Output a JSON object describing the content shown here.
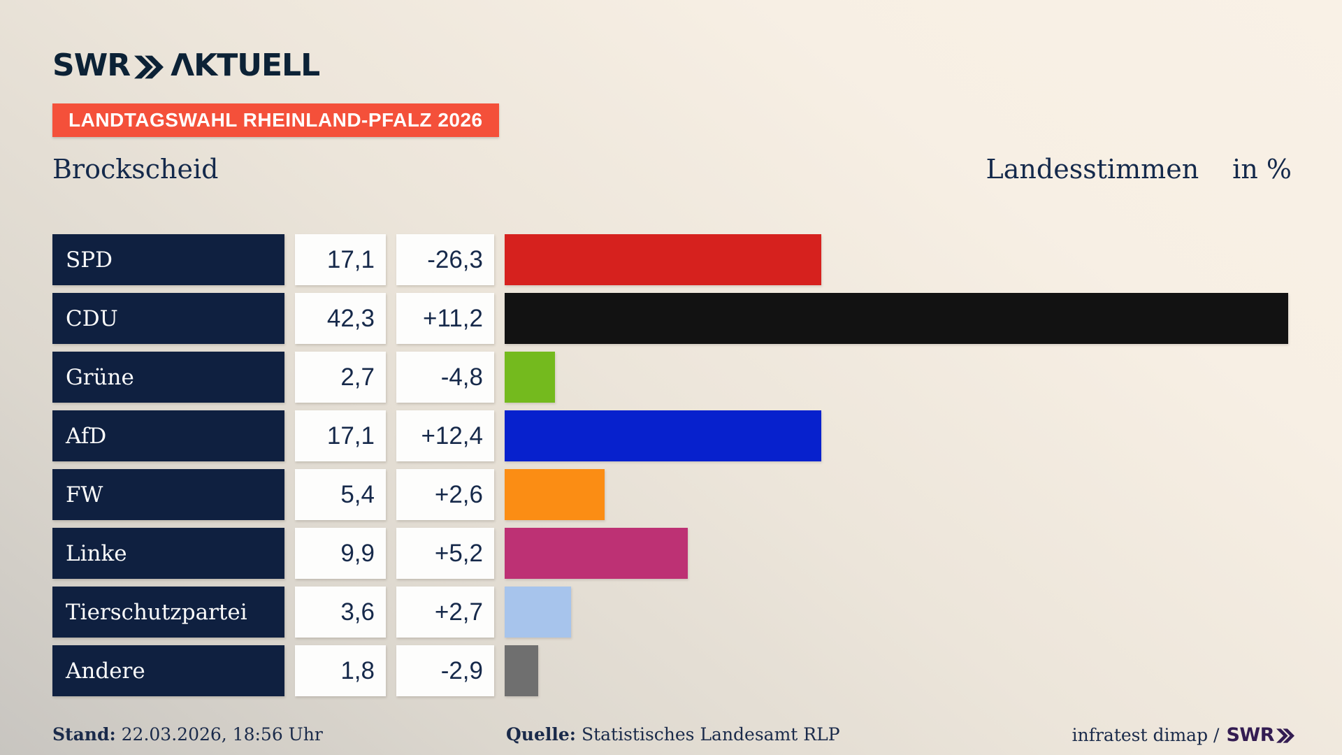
{
  "header": {
    "logo_swr": "SWR",
    "logo_aktuell": "ΛKTUELL",
    "banner": "LANDTAGSWAHL RHEINLAND-PFALZ 2026"
  },
  "title": {
    "municipality": "Brockscheid",
    "measure": "Landesstimmen",
    "unit": "in %"
  },
  "chart_data": {
    "type": "bar",
    "title": "Landtagswahl Rheinland-Pfalz 2026 — Brockscheid, Landesstimmen in %",
    "orientation": "horizontal",
    "categories": [
      "SPD",
      "CDU",
      "Grüne",
      "AfD",
      "FW",
      "Linke",
      "Tierschutzpartei",
      "Andere"
    ],
    "values": [
      17.1,
      42.3,
      2.7,
      17.1,
      5.4,
      9.9,
      3.6,
      1.8
    ],
    "changes": [
      -26.3,
      11.2,
      -4.8,
      12.4,
      2.6,
      5.2,
      2.7,
      -2.9
    ],
    "value_labels": [
      "17,1",
      "42,3",
      "2,7",
      "17,1",
      "5,4",
      "9,9",
      "3,6",
      "1,8"
    ],
    "change_labels": [
      "-26,3",
      "+11,2",
      "-4,8",
      "+12,4",
      "+2,6",
      "+5,2",
      "+2,7",
      "-2,9"
    ],
    "bar_colors": [
      "#d6211e",
      "#121212",
      "#74ba1e",
      "#0721cd",
      "#fb8d14",
      "#bd3174",
      "#a7c4ec",
      "#6f6f6f"
    ],
    "xlim": [
      0,
      43
    ],
    "grid": false,
    "legend": "none",
    "colors": {
      "row_label_bg": "#0f2040",
      "value_box_bg": "#fdfdfc",
      "text_navy": "#14294b",
      "banner_red": "#f4503a",
      "footer_logo_purple": "#331c52"
    }
  },
  "footer": {
    "stand_label": "Stand:",
    "stand_value": "22.03.2026, 18:56 Uhr",
    "quelle_label": "Quelle:",
    "quelle_value": "Statistisches Landesamt RLP",
    "attribution": "infratest dimap /",
    "attribution_logo": "SWR"
  }
}
